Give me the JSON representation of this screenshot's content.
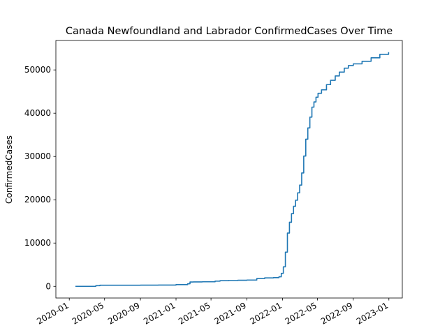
{
  "chart_data": {
    "type": "line",
    "title": "Canada Newfoundland and Labrador ConfirmedCases Over Time",
    "xlabel": "",
    "ylabel": "ConfirmedCases",
    "x_ticks": [
      "2020-01",
      "2020-05",
      "2020-09",
      "2021-01",
      "2021-05",
      "2021-09",
      "2022-01",
      "2022-05",
      "2022-09",
      "2023-01"
    ],
    "y_ticks": [
      0,
      10000,
      20000,
      30000,
      40000,
      50000
    ],
    "xlim": [
      "2019-11-16",
      "2023-02-16"
    ],
    "ylim": [
      -2700,
      56800
    ],
    "grid": false,
    "line_color": "#1f77b4",
    "step": true,
    "series": [
      {
        "x": [
          "2020-01-22",
          "2020-03-15",
          "2020-04-01",
          "2020-04-15",
          "2020-06-01",
          "2020-09-01",
          "2020-11-01",
          "2021-01-01",
          "2021-02-10",
          "2021-02-18",
          "2021-03-01",
          "2021-04-01",
          "2021-05-15",
          "2021-06-01",
          "2021-07-01",
          "2021-08-01",
          "2021-09-01",
          "2021-10-05",
          "2021-11-01",
          "2021-12-01",
          "2021-12-20",
          "2021-12-28",
          "2022-01-04",
          "2022-01-11",
          "2022-01-18",
          "2022-01-25",
          "2022-02-01",
          "2022-02-08",
          "2022-02-15",
          "2022-02-22",
          "2022-03-01",
          "2022-03-08",
          "2022-03-15",
          "2022-03-22",
          "2022-03-29",
          "2022-04-05",
          "2022-04-12",
          "2022-04-19",
          "2022-04-26",
          "2022-05-03",
          "2022-05-15",
          "2022-06-01",
          "2022-06-15",
          "2022-07-01",
          "2022-07-15",
          "2022-08-01",
          "2022-08-15",
          "2022-09-01",
          "2022-10-01",
          "2022-11-01",
          "2022-12-01",
          "2022-12-31"
        ],
        "y": [
          0,
          0,
          150,
          250,
          260,
          270,
          300,
          400,
          600,
          1000,
          1020,
          1050,
          1200,
          1300,
          1350,
          1400,
          1450,
          1800,
          1950,
          2000,
          2200,
          3000,
          4500,
          7900,
          12300,
          14800,
          16800,
          18500,
          19900,
          21600,
          23400,
          26200,
          30100,
          34000,
          36600,
          39100,
          41400,
          42600,
          43700,
          44600,
          45400,
          46600,
          47600,
          48600,
          49500,
          50400,
          51000,
          51400,
          52000,
          52800,
          53600,
          54100
        ]
      }
    ]
  }
}
